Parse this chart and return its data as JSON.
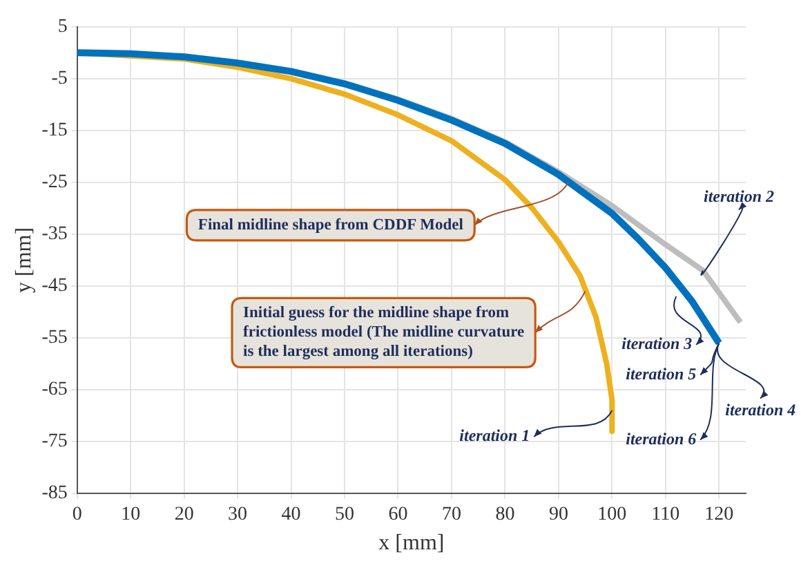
{
  "chart_data": {
    "type": "line",
    "xlabel": "x [mm]",
    "ylabel": "y [mm]",
    "xlim": [
      0,
      125
    ],
    "ylim": [
      -85,
      5
    ],
    "xticks": [
      0,
      10,
      20,
      30,
      40,
      50,
      60,
      70,
      80,
      90,
      100,
      110,
      120
    ],
    "yticks": [
      5,
      -5,
      -15,
      -25,
      -35,
      -45,
      -55,
      -65,
      -75,
      -85
    ],
    "grid": true,
    "legend": false,
    "marker": "none",
    "line_style": "solid",
    "series": [
      {
        "color": "#edb120",
        "x": [
          0,
          10,
          20,
          30,
          40,
          50,
          60,
          70,
          80,
          85,
          90,
          94,
          97,
          99,
          100,
          100
        ],
        "values": [
          0,
          null,
          -1.2,
          -2.8,
          -5,
          -8,
          -12,
          -17,
          -24.5,
          -29.9,
          -36.5,
          -43,
          -51,
          -60,
          -67,
          -73
        ]
      },
      {
        "color": "#bdbdbd",
        "x": [
          0,
          10,
          20,
          30,
          40,
          50,
          60,
          70,
          80,
          90,
          100,
          110,
          117,
          124
        ],
        "values": [
          0,
          -0.2,
          -0.8,
          -2,
          -3.6,
          -5.9,
          -9,
          -12.7,
          -17.2,
          -23,
          -29.5,
          -37,
          -42,
          -52
        ]
      },
      {
        "color": "#0072bd",
        "x": [
          0,
          10,
          20,
          30,
          40,
          50,
          60,
          70,
          80,
          90,
          100,
          105,
          110,
          115,
          120
        ],
        "values": [
          0,
          -0.2,
          -0.8,
          -2,
          -3.6,
          -6,
          -9.2,
          -13,
          -17.5,
          -23.5,
          -31,
          -36,
          -41.5,
          -48,
          -56
        ]
      }
    ],
    "annotations": [
      {
        "text": "Final midline shape from CDDF Model",
        "x": 91.8,
        "y": -25
      },
      {
        "text": "Initial guess for the midline shape from frictionless model (The midline curvature is the largest among all iterations)",
        "x": 95,
        "y": -46
      },
      {
        "text": "iteration 1",
        "x": 100,
        "y": -69
      },
      {
        "text": "iteration 2",
        "x": 117,
        "y": -42
      },
      {
        "text": "iteration 3",
        "x": 112,
        "y": -47
      },
      {
        "text": "iteration 5",
        "x": 120,
        "y": -56
      },
      {
        "text": "iteration 4",
        "x": 120,
        "y": -56
      },
      {
        "text": "iteration 6",
        "x": 120,
        "y": -56
      }
    ]
  }
}
